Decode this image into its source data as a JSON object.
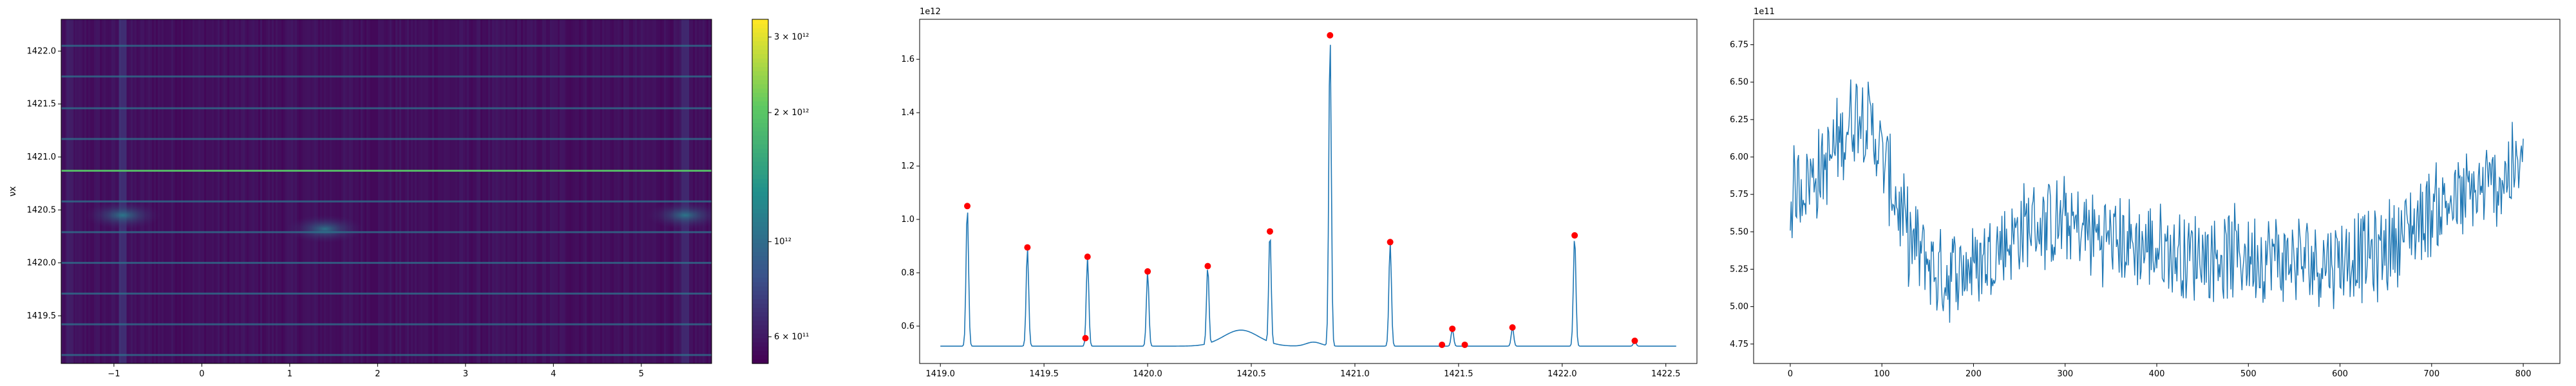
{
  "chart_data": [
    {
      "type": "heatmap",
      "title": "",
      "xlabel": "",
      "ylabel": "νx",
      "xlim": [
        -1.6,
        5.8
      ],
      "ylim": [
        1419.05,
        1422.3
      ],
      "xticks": [
        -1,
        0,
        1,
        2,
        3,
        4,
        5
      ],
      "xtick_labels": [
        "−1",
        "0",
        "1",
        "2",
        "3",
        "4",
        "5"
      ],
      "yticks": [
        1419.5,
        1420.0,
        1420.5,
        1421.0,
        1421.5,
        1422.0
      ],
      "ytick_labels": [
        "1419.5",
        "1420.0",
        "1420.5",
        "1421.0",
        "1421.5",
        "1422.0"
      ],
      "colormap": "viridis",
      "color_scale": "log",
      "colorbar": {
        "ticks": [
          600000000000,
          1000000000000,
          2000000000000,
          3000000000000
        ],
        "tick_labels": [
          "6 × 10¹¹",
          "10¹²",
          "2 × 10¹²",
          "3 × 10¹²"
        ],
        "range": [
          520000000000,
          3300000000000
        ]
      },
      "horizontal_lines": [
        1419.13,
        1419.42,
        1419.71,
        1420.0,
        1420.29,
        1420.58,
        1420.87,
        1421.17,
        1421.46,
        1421.76,
        1422.05
      ],
      "bright_lines": [
        1420.87
      ],
      "blobs": [
        {
          "x": -0.9,
          "y": 1420.45
        },
        {
          "x": 1.4,
          "y": 1420.32
        },
        {
          "x": 5.5,
          "y": 1420.45
        }
      ]
    },
    {
      "type": "line",
      "title": "",
      "xlabel": "",
      "ylabel": "",
      "offset_text": "1e12",
      "xlim": [
        1418.9,
        1422.65
      ],
      "ylim": [
        0.46,
        1.75
      ],
      "xticks": [
        1419.0,
        1419.5,
        1420.0,
        1420.5,
        1421.0,
        1421.5,
        1422.0,
        1422.5
      ],
      "xtick_labels": [
        "1419.0",
        "1419.5",
        "1420.0",
        "1420.5",
        "1421.0",
        "1421.5",
        "1422.0",
        "1422.5"
      ],
      "yticks": [
        0.6,
        0.8,
        1.0,
        1.2,
        1.4,
        1.6
      ],
      "ytick_labels": [
        "0.6",
        "0.8",
        "1.0",
        "1.2",
        "1.4",
        "1.6"
      ],
      "line_color": "#1f77b4",
      "baseline": 0.525,
      "peaks": [
        {
          "x": 1419.13,
          "y": 1.05
        },
        {
          "x": 1419.42,
          "y": 0.895
        },
        {
          "x": 1419.71,
          "y": 0.86
        },
        {
          "x": 1420.0,
          "y": 0.805
        },
        {
          "x": 1420.29,
          "y": 0.825
        },
        {
          "x": 1420.59,
          "y": 0.955
        },
        {
          "x": 1420.88,
          "y": 1.69
        },
        {
          "x": 1421.17,
          "y": 0.915
        },
        {
          "x": 1421.47,
          "y": 0.59
        },
        {
          "x": 1421.76,
          "y": 0.595
        },
        {
          "x": 1422.06,
          "y": 0.94
        },
        {
          "x": 1422.35,
          "y": 0.545
        }
      ],
      "marker_color": "#ff0000",
      "markers": [
        {
          "x": 1419.13,
          "y": 1.05
        },
        {
          "x": 1419.42,
          "y": 0.895
        },
        {
          "x": 1419.7,
          "y": 0.555
        },
        {
          "x": 1419.71,
          "y": 0.86
        },
        {
          "x": 1420.0,
          "y": 0.805
        },
        {
          "x": 1420.29,
          "y": 0.825
        },
        {
          "x": 1420.59,
          "y": 0.955
        },
        {
          "x": 1420.88,
          "y": 1.69
        },
        {
          "x": 1421.17,
          "y": 0.915
        },
        {
          "x": 1421.42,
          "y": 0.53
        },
        {
          "x": 1421.47,
          "y": 0.59
        },
        {
          "x": 1421.53,
          "y": 0.53
        },
        {
          "x": 1421.76,
          "y": 0.595
        },
        {
          "x": 1422.06,
          "y": 0.94
        },
        {
          "x": 1422.35,
          "y": 0.545
        }
      ]
    },
    {
      "type": "line",
      "title": "",
      "xlabel": "",
      "ylabel": "",
      "offset_text": "1e11",
      "xlim": [
        -40,
        840
      ],
      "ylim": [
        4.62,
        6.92
      ],
      "xticks": [
        0,
        100,
        200,
        300,
        400,
        500,
        600,
        700,
        800
      ],
      "xtick_labels": [
        "0",
        "100",
        "200",
        "300",
        "400",
        "500",
        "600",
        "700",
        "800"
      ],
      "yticks": [
        4.75,
        5.0,
        5.25,
        5.5,
        5.75,
        6.0,
        6.25,
        6.5,
        6.75
      ],
      "ytick_labels": [
        "4.75",
        "5.00",
        "5.25",
        "5.50",
        "5.75",
        "6.00",
        "6.25",
        "6.50",
        "6.75"
      ],
      "line_color": "#1f77b4",
      "n_points": 801,
      "trend": [
        {
          "x": 0,
          "y": 5.75
        },
        {
          "x": 40,
          "y": 5.95
        },
        {
          "x": 75,
          "y": 6.35
        },
        {
          "x": 95,
          "y": 6.1
        },
        {
          "x": 130,
          "y": 5.45
        },
        {
          "x": 165,
          "y": 5.2
        },
        {
          "x": 210,
          "y": 5.3
        },
        {
          "x": 260,
          "y": 5.55
        },
        {
          "x": 300,
          "y": 5.55
        },
        {
          "x": 350,
          "y": 5.45
        },
        {
          "x": 420,
          "y": 5.35
        },
        {
          "x": 500,
          "y": 5.35
        },
        {
          "x": 560,
          "y": 5.3
        },
        {
          "x": 640,
          "y": 5.35
        },
        {
          "x": 700,
          "y": 5.65
        },
        {
          "x": 750,
          "y": 5.75
        },
        {
          "x": 800,
          "y": 5.95
        }
      ],
      "noise_amplitude": 0.35
    }
  ]
}
